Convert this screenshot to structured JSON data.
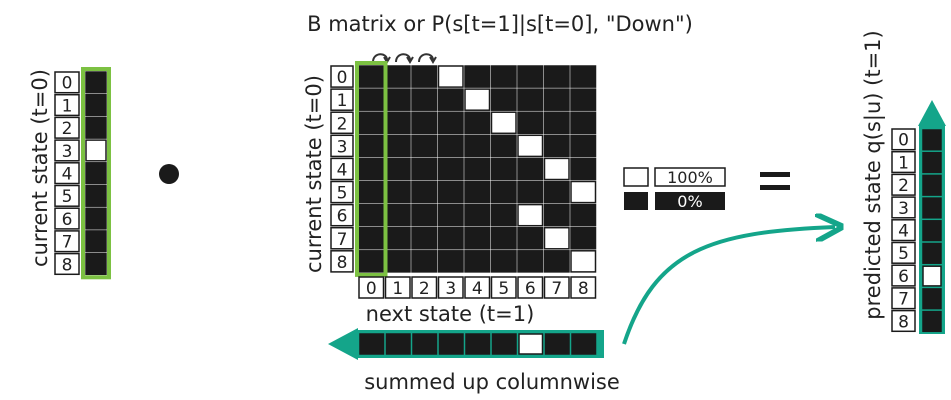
{
  "title": "B matrix or P(s[t=1]|s[t=0], \"Down\")",
  "current_state_label": "current state (t=0)",
  "matrix_row_label": "current state (t=0)",
  "matrix_col_label": "next state (t=1)",
  "summed_label": "summed up columnwise",
  "predicted_label": "predicted state q(s|u) (t=1)",
  "legend": {
    "white": "100%",
    "black": "0%"
  },
  "state_indices": [
    "0",
    "1",
    "2",
    "3",
    "4",
    "5",
    "6",
    "7",
    "8"
  ],
  "current_state_vector": [
    0,
    0,
    0,
    1,
    0,
    0,
    0,
    0,
    0
  ],
  "b_matrix": [
    [
      0,
      0,
      0,
      1,
      0,
      0,
      0,
      0,
      0
    ],
    [
      0,
      0,
      0,
      0,
      1,
      0,
      0,
      0,
      0
    ],
    [
      0,
      0,
      0,
      0,
      0,
      1,
      0,
      0,
      0
    ],
    [
      0,
      0,
      0,
      0,
      0,
      0,
      1,
      0,
      0
    ],
    [
      0,
      0,
      0,
      0,
      0,
      0,
      0,
      1,
      0
    ],
    [
      0,
      0,
      0,
      0,
      0,
      0,
      0,
      0,
      1
    ],
    [
      0,
      0,
      0,
      0,
      0,
      0,
      1,
      0,
      0
    ],
    [
      0,
      0,
      0,
      0,
      0,
      0,
      0,
      1,
      0
    ],
    [
      0,
      0,
      0,
      0,
      0,
      0,
      0,
      0,
      1
    ]
  ],
  "summed_vector": [
    0,
    0,
    0,
    0,
    0,
    0,
    1,
    0,
    0
  ],
  "predicted_state_vector": [
    0,
    0,
    0,
    0,
    0,
    0,
    1,
    0,
    0
  ],
  "colors": {
    "green": "#7cc142",
    "teal": "#14a58a",
    "black": "#1a1a1a",
    "white": "#ffffff"
  }
}
